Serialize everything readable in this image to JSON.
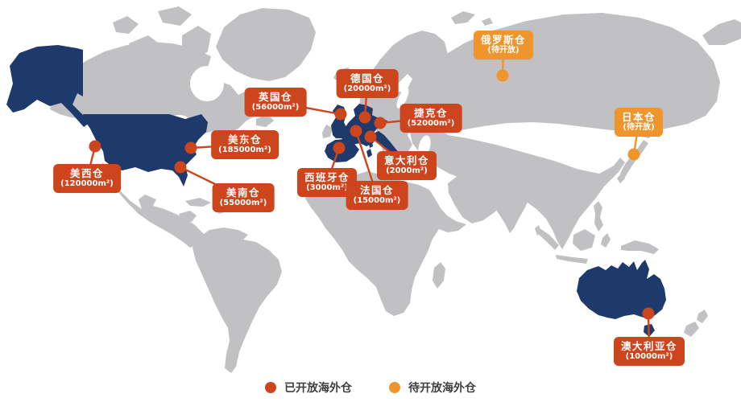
{
  "colors": {
    "open": "#CC451D",
    "pending": "#F0952B",
    "land": "#C1C1C3",
    "highlight": "#1E3A6C",
    "background": "#FFFFFF",
    "label_text": "#FFFFFF",
    "legend_text": "#3E3E3E"
  },
  "markers": [
    {
      "id": "us-west",
      "name": "美西仓",
      "size": "(120000m²)",
      "status": "open",
      "dot": [
        118,
        182
      ],
      "label": [
        108,
        222
      ]
    },
    {
      "id": "us-east",
      "name": "美东仓",
      "size": "(185000m²)",
      "status": "open",
      "dot": [
        237,
        184
      ],
      "label": [
        304,
        180
      ]
    },
    {
      "id": "us-south",
      "name": "美南仓",
      "size": "(55000m²)",
      "status": "open",
      "dot": [
        224,
        208
      ],
      "label": [
        302,
        246
      ]
    },
    {
      "id": "uk",
      "name": "英国仓",
      "size": "(56000m²)",
      "status": "open",
      "dot": [
        423,
        142
      ],
      "label": [
        342,
        127
      ]
    },
    {
      "id": "germany",
      "name": "德国仓",
      "size": "(20000m²)",
      "status": "open",
      "dot": [
        453,
        146
      ],
      "label": [
        456,
        104
      ]
    },
    {
      "id": "czech",
      "name": "捷克仓",
      "size": "(52000m²)",
      "status": "open",
      "dot": [
        472,
        153
      ],
      "label": [
        535,
        147
      ]
    },
    {
      "id": "spain",
      "name": "西班牙仓",
      "size": "(3000m²)",
      "status": "open",
      "dot": [
        421,
        184
      ],
      "label": [
        406,
        227
      ]
    },
    {
      "id": "france",
      "name": "法国仓",
      "size": "(15000m²)",
      "status": "open",
      "dot": [
        442,
        163
      ],
      "label": [
        468,
        243
      ]
    },
    {
      "id": "italy",
      "name": "意大利仓",
      "size": "(2000m²)",
      "status": "open",
      "dot": [
        460,
        170
      ],
      "label": [
        505,
        206
      ]
    },
    {
      "id": "russia",
      "name": "俄罗斯仓",
      "size": "(待开放)",
      "status": "pending",
      "dot": [
        624,
        94
      ],
      "label": [
        625,
        56
      ]
    },
    {
      "id": "japan",
      "name": "日本仓",
      "size": "(待开放)",
      "status": "pending",
      "dot": [
        787,
        192
      ],
      "label": [
        793,
        152
      ]
    },
    {
      "id": "australia",
      "name": "澳大利亚仓",
      "size": "(10000m²)",
      "status": "open",
      "dot": [
        805,
        390
      ],
      "label": [
        806,
        437
      ]
    }
  ],
  "legend": {
    "items": [
      {
        "label": "已开放海外仓",
        "status": "open"
      },
      {
        "label": "待开放海外仓",
        "status": "pending"
      }
    ]
  }
}
